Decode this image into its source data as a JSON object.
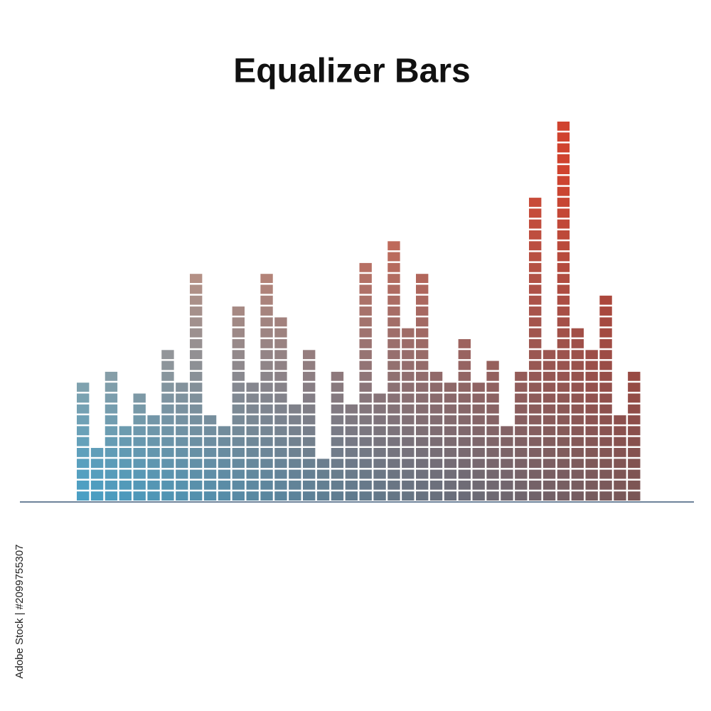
{
  "chart_data": {
    "type": "equalizer",
    "title": "Equalizer Bars",
    "values": [
      11,
      5,
      12,
      7,
      10,
      8,
      14,
      11,
      21,
      8,
      7,
      18,
      11,
      21,
      17,
      9,
      14,
      4,
      12,
      9,
      22,
      10,
      24,
      16,
      21,
      12,
      11,
      15,
      11,
      13,
      7,
      12,
      28,
      14,
      35,
      16,
      14,
      19,
      8,
      12
    ],
    "colors": {
      "bottom_left": "#4a9fc4",
      "bottom_right": "#7a5656",
      "top_left": "#eaa886",
      "top_right": "#cc3422"
    },
    "watermark": "Adobe Stock | #2099755307"
  }
}
